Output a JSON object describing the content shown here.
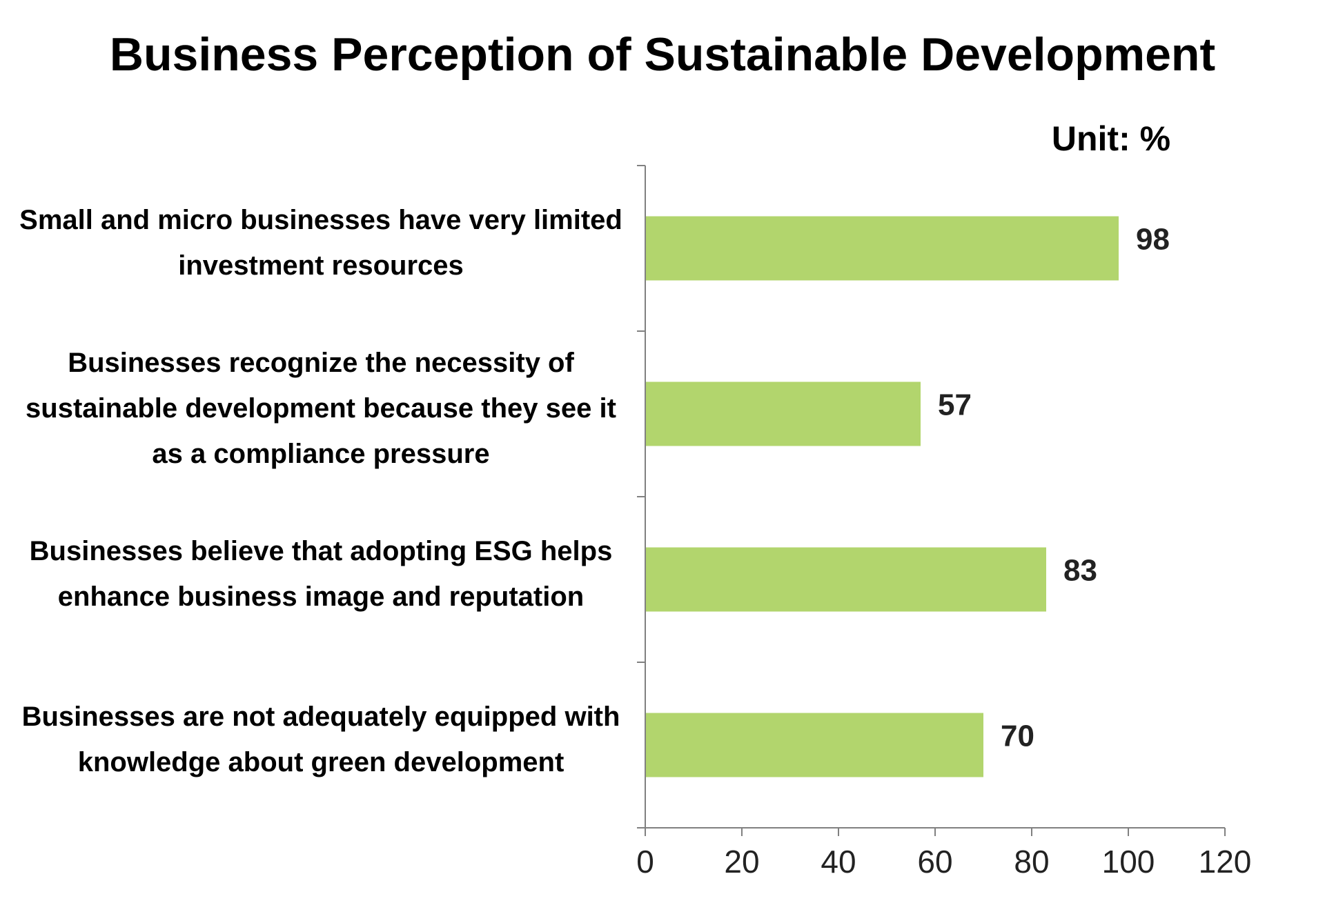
{
  "chart_data": {
    "type": "bar",
    "orientation": "horizontal",
    "title": "Business Perception of Sustainable Development",
    "unit_label": "Unit: %",
    "categories": [
      "Small and micro businesses have very limited investment resources",
      "Businesses recognize the necessity of sustainable development because they see it as a compliance pressure",
      "Businesses believe that adopting ESG helps enhance business image and reputation",
      "Businesses are not adequately equipped with knowledge about green development"
    ],
    "values": [
      98,
      57,
      83,
      70
    ],
    "data_labels": [
      "98",
      "57",
      "83",
      "70"
    ],
    "xlim": [
      0,
      120
    ],
    "xticks": [
      0,
      20,
      40,
      60,
      80,
      100,
      120
    ],
    "xtick_labels": [
      "0",
      "20",
      "40",
      "60",
      "80",
      "100",
      "120"
    ],
    "bar_color": "#b2d56d",
    "axis_color": "#808080",
    "grid": false,
    "legend": "none"
  }
}
